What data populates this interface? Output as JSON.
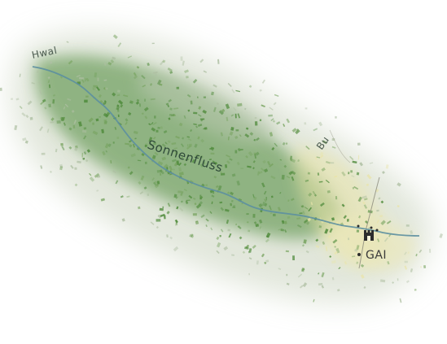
{
  "map": {
    "colors": {
      "background": "#ffffff",
      "forest_dark": "#4e8a3a",
      "forest_mid": "#77a35f",
      "forest_light": "#aebfa2",
      "meadow_yellow": "#e9e4a8",
      "river": "#5c8fa0",
      "road": "#8a8a7a",
      "town_icon": "#2c2c2c"
    },
    "labels": {
      "river_main": "Sonnenfluss",
      "river_north": "Hwal",
      "river_east": "Bu",
      "town": "GAI"
    },
    "icons": {
      "town_marker": "castle-icon",
      "town_point": "dot-icon"
    }
  }
}
